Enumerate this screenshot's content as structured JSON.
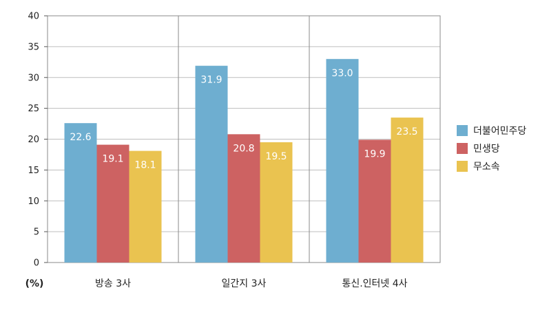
{
  "chart_data": {
    "type": "bar",
    "categories": [
      "방송 3사",
      "일간지 3사",
      "통신.인터넷 4사"
    ],
    "series": [
      {
        "name": "더불어민주당",
        "values": [
          22.6,
          31.9,
          33.0
        ],
        "labels": [
          "22.6",
          "31.9",
          "33.0"
        ],
        "color": "#6eaed0"
      },
      {
        "name": "민생당",
        "values": [
          19.1,
          20.8,
          19.9
        ],
        "labels": [
          "19.1",
          "20.8",
          "19.9"
        ],
        "color": "#cd6262"
      },
      {
        "name": "무소속",
        "values": [
          18.1,
          19.5,
          23.5
        ],
        "labels": [
          "18.1",
          "19.5",
          "23.5"
        ],
        "color": "#eac350"
      }
    ],
    "ylim": [
      0,
      40
    ],
    "yticks": [
      "0",
      "5",
      "10",
      "15",
      "20",
      "25",
      "30",
      "35",
      "40"
    ],
    "ylabel": "(%)",
    "grid": true,
    "legend_position": "right"
  }
}
